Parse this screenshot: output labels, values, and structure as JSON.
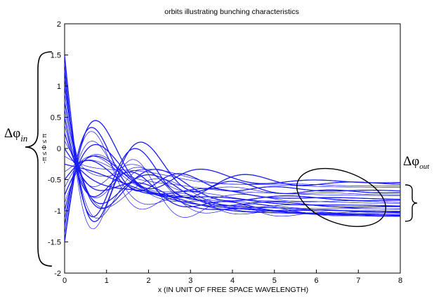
{
  "chart_data": {
    "type": "line",
    "title": "orbits illustrating bunching characteristics",
    "xlabel": "x (IN UNIT OF FREE SPACE WAVELENGTH)",
    "ylabel": "-π ≤ Φ ≤ π",
    "xlim": [
      0,
      8
    ],
    "ylim": [
      -2,
      2
    ],
    "x_ticks": [
      "0",
      "1",
      "2",
      "3",
      "4",
      "5",
      "6",
      "7",
      "8"
    ],
    "y_ticks": [
      "2",
      "1.5",
      "1",
      "0.5",
      "0",
      "-0.5",
      "-1",
      "-1.5",
      "-2"
    ],
    "grid": false,
    "series_color": "#1a1aff",
    "orbit_count": 25,
    "initial_phase_range": [
      -1.5,
      1.5
    ],
    "final_phase_range": [
      -1.1,
      -0.6
    ],
    "annotations": {
      "delta_phi_in": {
        "main": "Δφ",
        "sub": "in"
      },
      "delta_phi_out": {
        "main": "Δφ",
        "sub": "out"
      }
    }
  }
}
